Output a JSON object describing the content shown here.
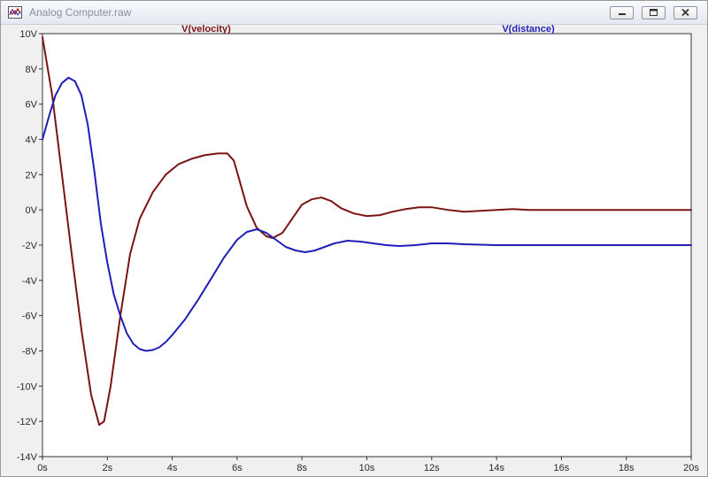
{
  "window": {
    "title": "Analog Computer.raw",
    "icon": "waveform-icon",
    "buttons": {
      "minimize": "minimize-icon",
      "maximize": "maximize-icon",
      "close": "close-icon"
    }
  },
  "chart_data": {
    "type": "line",
    "title": "",
    "xlabel": "",
    "ylabel": "",
    "xlim": [
      0,
      20
    ],
    "ylim": [
      -14,
      10
    ],
    "x_ticks": [
      {
        "value": 0,
        "label": "0s"
      },
      {
        "value": 2,
        "label": "2s"
      },
      {
        "value": 4,
        "label": "4s"
      },
      {
        "value": 6,
        "label": "6s"
      },
      {
        "value": 8,
        "label": "8s"
      },
      {
        "value": 10,
        "label": "10s"
      },
      {
        "value": 12,
        "label": "12s"
      },
      {
        "value": 14,
        "label": "14s"
      },
      {
        "value": 16,
        "label": "16s"
      },
      {
        "value": 18,
        "label": "18s"
      },
      {
        "value": 20,
        "label": "20s"
      }
    ],
    "y_ticks": [
      {
        "value": 10,
        "label": "10V"
      },
      {
        "value": 8,
        "label": "8V"
      },
      {
        "value": 6,
        "label": "6V"
      },
      {
        "value": 4,
        "label": "4V"
      },
      {
        "value": 2,
        "label": "2V"
      },
      {
        "value": 0,
        "label": "0V"
      },
      {
        "value": -2,
        "label": "-2V"
      },
      {
        "value": -4,
        "label": "-4V"
      },
      {
        "value": -6,
        "label": "-6V"
      },
      {
        "value": -8,
        "label": "-8V"
      },
      {
        "value": -10,
        "label": "-10V"
      },
      {
        "value": -12,
        "label": "-12V"
      },
      {
        "value": -14,
        "label": "-14V"
      }
    ],
    "grid": false,
    "series": [
      {
        "name": "V(velocity)",
        "color": "#7a1414",
        "x": [
          0,
          0.3,
          0.6,
          0.9,
          1.2,
          1.5,
          1.75,
          1.9,
          2.1,
          2.4,
          2.7,
          3.0,
          3.4,
          3.8,
          4.2,
          4.6,
          5.0,
          5.4,
          5.7,
          5.9,
          6.1,
          6.3,
          6.6,
          6.9,
          7.1,
          7.4,
          7.7,
          8.0,
          8.3,
          8.6,
          8.9,
          9.2,
          9.6,
          10.0,
          10.4,
          10.8,
          11.2,
          11.6,
          12.0,
          12.5,
          13.0,
          13.5,
          14.0,
          14.5,
          15.0,
          16.0,
          17.0,
          18.0,
          20.0
        ],
        "y": [
          9.8,
          6.5,
          2.0,
          -2.5,
          -6.8,
          -10.5,
          -12.2,
          -12.0,
          -10.0,
          -6.0,
          -2.5,
          -0.5,
          1.0,
          2.0,
          2.6,
          2.9,
          3.1,
          3.2,
          3.2,
          2.8,
          1.5,
          0.2,
          -1.0,
          -1.5,
          -1.6,
          -1.3,
          -0.5,
          0.3,
          0.6,
          0.7,
          0.5,
          0.1,
          -0.2,
          -0.35,
          -0.3,
          -0.1,
          0.05,
          0.15,
          0.15,
          0.0,
          -0.1,
          -0.05,
          0.0,
          0.05,
          0.0,
          0.0,
          0.0,
          0.0,
          0.0
        ]
      },
      {
        "name": "V(distance)",
        "color": "#1f1fb8",
        "x": [
          0,
          0.2,
          0.4,
          0.6,
          0.8,
          1.0,
          1.2,
          1.4,
          1.6,
          1.8,
          2.0,
          2.2,
          2.4,
          2.6,
          2.8,
          3.0,
          3.2,
          3.4,
          3.6,
          3.8,
          4.0,
          4.4,
          4.8,
          5.2,
          5.6,
          6.0,
          6.3,
          6.6,
          6.9,
          7.2,
          7.5,
          7.8,
          8.1,
          8.4,
          8.7,
          9.0,
          9.4,
          9.8,
          10.2,
          10.6,
          11.0,
          11.5,
          12.0,
          12.5,
          13.0,
          14.0,
          15.0,
          16.0,
          18.0,
          20.0
        ],
        "y": [
          4.0,
          5.3,
          6.5,
          7.2,
          7.5,
          7.3,
          6.5,
          4.8,
          2.2,
          -0.8,
          -3.0,
          -4.8,
          -6.0,
          -7.0,
          -7.6,
          -7.9,
          -8.0,
          -7.95,
          -7.8,
          -7.5,
          -7.1,
          -6.2,
          -5.1,
          -3.9,
          -2.7,
          -1.7,
          -1.25,
          -1.1,
          -1.3,
          -1.7,
          -2.1,
          -2.3,
          -2.4,
          -2.3,
          -2.1,
          -1.9,
          -1.75,
          -1.8,
          -1.9,
          -2.0,
          -2.05,
          -2.0,
          -1.9,
          -1.9,
          -1.95,
          -2.0,
          -2.0,
          -2.0,
          -2.0,
          -2.0
        ]
      }
    ]
  }
}
